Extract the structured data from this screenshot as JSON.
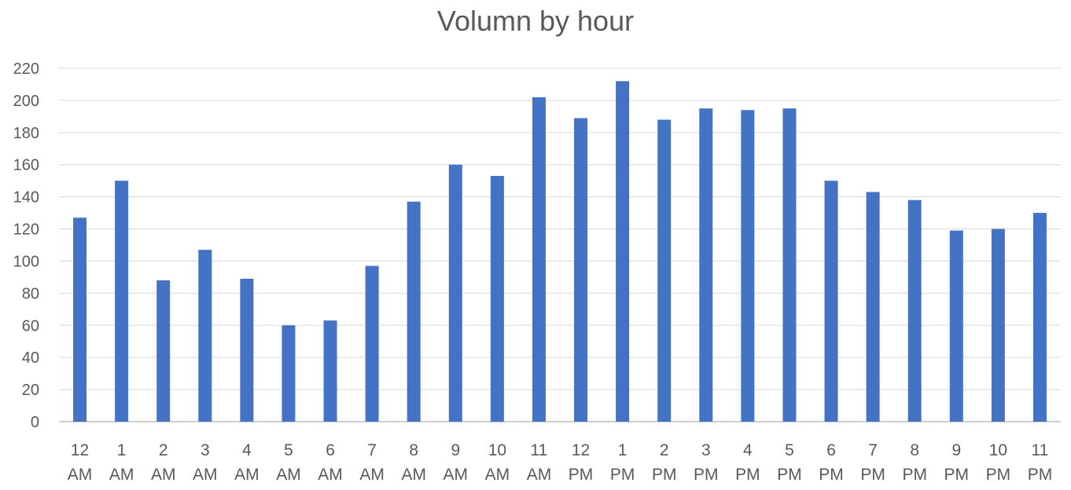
{
  "chart_data": {
    "type": "bar",
    "title": "Volumn by hour",
    "xlabel": "",
    "ylabel": "",
    "ylim": [
      0,
      220
    ],
    "yticks": [
      0,
      20,
      40,
      60,
      80,
      100,
      120,
      140,
      160,
      180,
      200,
      220
    ],
    "grid": true,
    "legend": "none",
    "bar_color": "#4472C4",
    "categories": [
      [
        "12",
        "AM"
      ],
      [
        "1",
        "AM"
      ],
      [
        "2",
        "AM"
      ],
      [
        "3",
        "AM"
      ],
      [
        "4",
        "AM"
      ],
      [
        "5",
        "AM"
      ],
      [
        "6",
        "AM"
      ],
      [
        "7",
        "AM"
      ],
      [
        "8",
        "AM"
      ],
      [
        "9",
        "AM"
      ],
      [
        "10",
        "AM"
      ],
      [
        "11",
        "AM"
      ],
      [
        "12",
        "PM"
      ],
      [
        "1",
        "PM"
      ],
      [
        "2",
        "PM"
      ],
      [
        "3",
        "PM"
      ],
      [
        "4",
        "PM"
      ],
      [
        "5",
        "PM"
      ],
      [
        "6",
        "PM"
      ],
      [
        "7",
        "PM"
      ],
      [
        "8",
        "PM"
      ],
      [
        "9",
        "PM"
      ],
      [
        "10",
        "PM"
      ],
      [
        "11",
        "PM"
      ]
    ],
    "values": [
      127,
      150,
      88,
      107,
      89,
      60,
      63,
      97,
      137,
      160,
      153,
      202,
      189,
      212,
      188,
      195,
      194,
      195,
      150,
      143,
      138,
      119,
      120,
      130
    ]
  }
}
